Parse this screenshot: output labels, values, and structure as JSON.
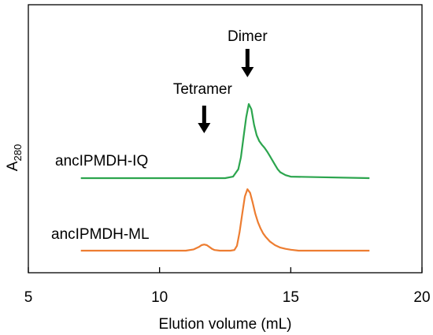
{
  "chart_data": {
    "type": "line",
    "title": "",
    "xlabel": "Elution volume (mL)",
    "ylabel": {
      "main": "A",
      "sub": "280"
    },
    "xlim": [
      5,
      20
    ],
    "xticks": [
      5,
      10,
      15,
      20
    ],
    "xtick_labels": [
      "5",
      "10",
      "15",
      "20"
    ],
    "yticks_shown": false,
    "grid": false,
    "legend": "none (series labeled inline to the left of each trace)",
    "series": [
      {
        "name": "ancIPMDH-IQ",
        "color": "#2ca54e",
        "baseline_offset": 1.0,
        "x": [
          7.0,
          12.5,
          12.8,
          13.0,
          13.1,
          13.2,
          13.3,
          13.4,
          13.5,
          13.6,
          13.7,
          13.8,
          13.9,
          14.0,
          14.1,
          14.2,
          14.3,
          14.4,
          14.5,
          14.6,
          14.8,
          15.0,
          18.0
        ],
        "y": [
          0.0,
          0.0,
          0.02,
          0.12,
          0.28,
          0.55,
          0.82,
          1.0,
          0.93,
          0.72,
          0.58,
          0.5,
          0.45,
          0.41,
          0.36,
          0.3,
          0.24,
          0.18,
          0.12,
          0.08,
          0.04,
          0.02,
          0.0
        ]
      },
      {
        "name": "ancIPMDH-ML",
        "color": "#ed7d31",
        "baseline_offset": 0.0,
        "x": [
          7.0,
          11.0,
          11.3,
          11.5,
          11.6,
          11.7,
          11.8,
          11.9,
          12.0,
          12.1,
          12.3,
          12.5,
          12.7,
          12.85,
          12.95,
          13.05,
          13.15,
          13.25,
          13.35,
          13.45,
          13.55,
          13.65,
          13.75,
          13.85,
          13.95,
          14.05,
          14.2,
          14.4,
          14.6,
          14.8,
          15.0,
          15.3,
          18.0
        ],
        "y": [
          0.0,
          0.0,
          0.02,
          0.06,
          0.09,
          0.1,
          0.09,
          0.06,
          0.03,
          0.01,
          0.0,
          0.0,
          0.0,
          0.01,
          0.08,
          0.3,
          0.6,
          0.88,
          1.0,
          0.94,
          0.78,
          0.6,
          0.46,
          0.36,
          0.28,
          0.22,
          0.15,
          0.09,
          0.05,
          0.03,
          0.015,
          0.0,
          0.0
        ]
      }
    ],
    "annotations": [
      {
        "text": "Dimer",
        "x": 13.35
      },
      {
        "text": "Tetramer",
        "x": 11.7
      }
    ]
  }
}
